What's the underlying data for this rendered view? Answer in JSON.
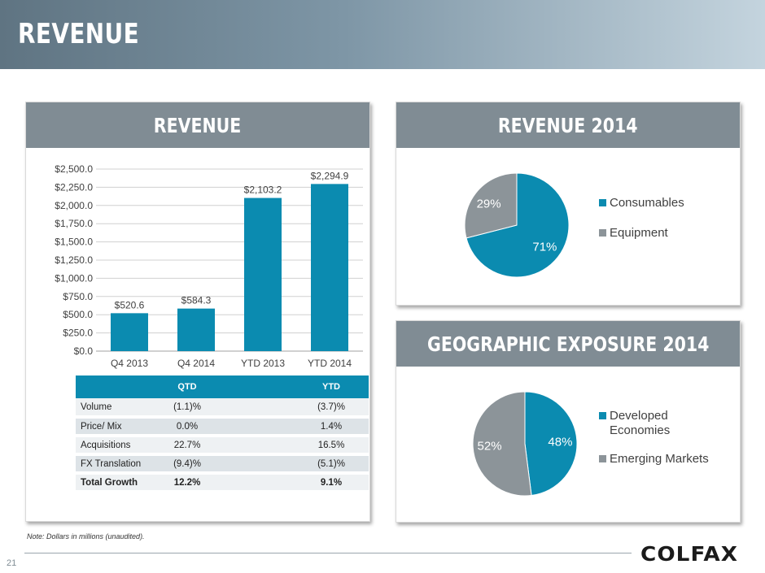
{
  "page": {
    "title": "REVENUE",
    "page_number": "21",
    "note": "Note: Dollars in millions (unaudited).",
    "logo_text": "COLFAX",
    "colors": {
      "accent_blue": "#0b8bb0",
      "gray": "#8c9499",
      "panel_header": "#808c94"
    }
  },
  "panels": {
    "revenue": {
      "title": "REVENUE"
    },
    "revenue_2014": {
      "title": "REVENUE 2014"
    },
    "geographic": {
      "title": "GEOGRAPHIC EXPOSURE 2014"
    }
  },
  "chart_data": [
    {
      "type": "bar",
      "categories": [
        "Q4 2013",
        "Q4 2014",
        "YTD 2013",
        "YTD 2014"
      ],
      "values": [
        520.6,
        584.3,
        2103.2,
        2294.9
      ],
      "data_labels": [
        "$520.6",
        "$584.3",
        "$2,103.2",
        "$2,294.9"
      ],
      "ylim": [
        0,
        2500
      ],
      "yticks": [
        0,
        250,
        500,
        750,
        1000,
        1250,
        1500,
        1750,
        2000,
        2250,
        2500
      ],
      "ytick_labels": [
        "$0.0",
        "$250.0",
        "$500.0",
        "$750.0",
        "$1,000.0",
        "$1,250.0",
        "$1,500.0",
        "$1,750.0",
        "$2,000.0",
        "$2,250.0",
        "$2,500.0"
      ],
      "grid": true,
      "color": "#0b8bb0"
    },
    {
      "type": "pie",
      "labels": [
        "Consumables",
        "Equipment"
      ],
      "values": [
        71,
        29
      ],
      "value_labels": [
        "71%",
        "29%"
      ],
      "colors": [
        "#0b8bb0",
        "#8c9499"
      ],
      "legend_position": "right"
    },
    {
      "type": "pie",
      "labels": [
        "Developed Economies",
        "Emerging Markets"
      ],
      "legend_lines": [
        [
          "Developed",
          "Economies"
        ],
        [
          "Emerging Markets"
        ]
      ],
      "values": [
        48,
        52
      ],
      "value_labels": [
        "48%",
        "52%"
      ],
      "colors": [
        "#0b8bb0",
        "#8c9499"
      ],
      "legend_position": "right"
    }
  ],
  "growth_table": {
    "headers": [
      "",
      "QTD",
      "",
      "YTD"
    ],
    "rows": [
      {
        "label": "Volume",
        "qtd": "(1.1)%",
        "ytd": "(3.7)%"
      },
      {
        "label": "Price/ Mix",
        "qtd": "0.0%",
        "ytd": "1.4%"
      },
      {
        "label": "Acquisitions",
        "qtd": "22.7%",
        "ytd": "16.5%"
      },
      {
        "label": "FX Translation",
        "qtd": "(9.4)%",
        "ytd": "(5.1)%"
      },
      {
        "label": "Total Growth",
        "qtd": "12.2%",
        "ytd": "9.1%"
      }
    ]
  }
}
